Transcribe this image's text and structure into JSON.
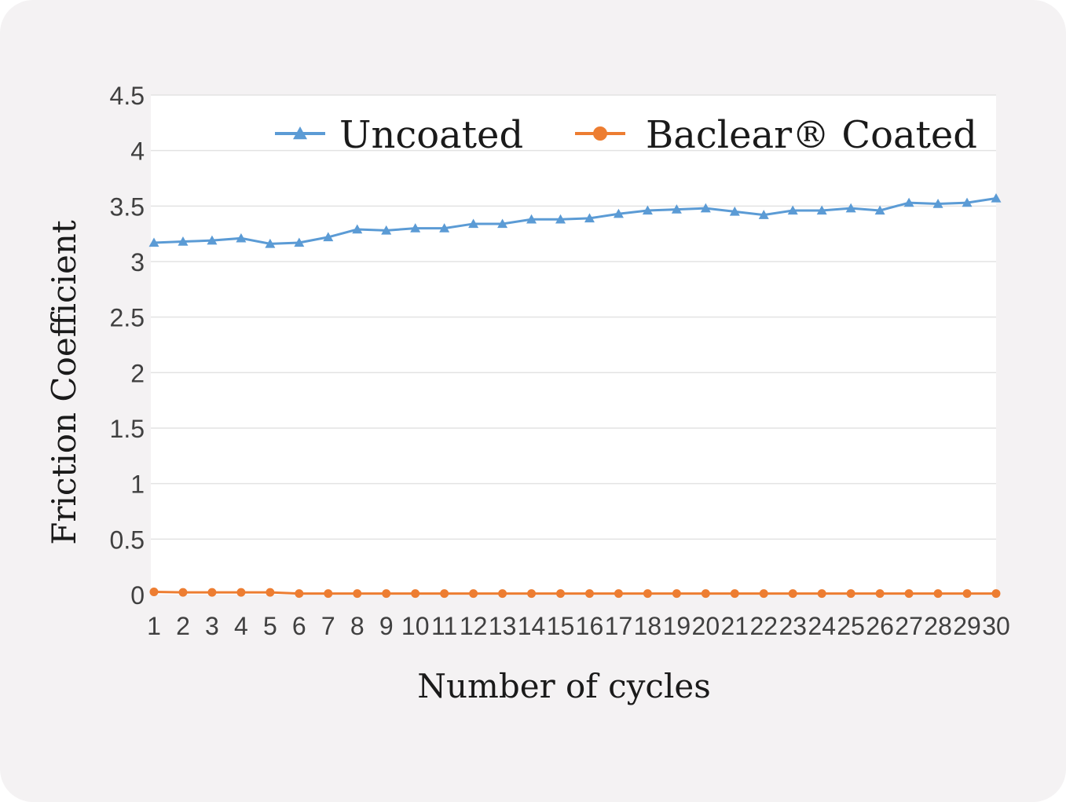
{
  "chart_data": {
    "type": "line",
    "xlabel": "Number of cycles",
    "ylabel": "Friction Coefficient",
    "ylim": [
      0,
      4.5
    ],
    "yticks": [
      "0",
      "0.5",
      "1",
      "1.5",
      "2",
      "2.5",
      "3",
      "3.5",
      "4",
      "4.5"
    ],
    "grid": true,
    "legend_position": "top",
    "categories": [
      "1",
      "2",
      "3",
      "4",
      "5",
      "6",
      "7",
      "8",
      "9",
      "10",
      "11",
      "12",
      "13",
      "14",
      "15",
      "16",
      "17",
      "18",
      "19",
      "20",
      "21",
      "22",
      "23",
      "24",
      "25",
      "26",
      "27",
      "28",
      "29",
      "30"
    ],
    "series": [
      {
        "name": "Uncoated",
        "marker": "triangle",
        "color": "#5b9bd5",
        "values": [
          3.17,
          3.18,
          3.19,
          3.21,
          3.16,
          3.17,
          3.22,
          3.29,
          3.28,
          3.3,
          3.3,
          3.34,
          3.34,
          3.38,
          3.38,
          3.39,
          3.43,
          3.46,
          3.47,
          3.48,
          3.45,
          3.42,
          3.46,
          3.46,
          3.48,
          3.46,
          3.53,
          3.52,
          3.53,
          3.57
        ]
      },
      {
        "name": "Baclear® Coated",
        "marker": "circle",
        "color": "#ed7d31",
        "values": [
          0.025,
          0.02,
          0.02,
          0.02,
          0.02,
          0.01,
          0.01,
          0.01,
          0.01,
          0.01,
          0.01,
          0.01,
          0.01,
          0.01,
          0.01,
          0.01,
          0.01,
          0.01,
          0.01,
          0.01,
          0.01,
          0.01,
          0.01,
          0.01,
          0.01,
          0.01,
          0.01,
          0.01,
          0.01,
          0.01
        ]
      }
    ]
  }
}
